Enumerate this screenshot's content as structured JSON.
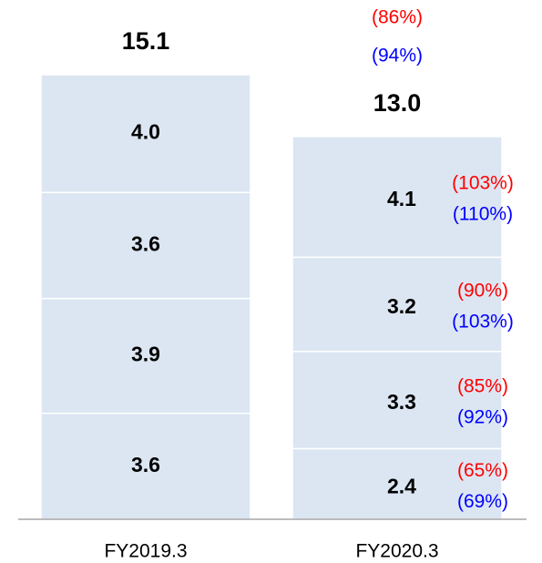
{
  "chart_data": {
    "type": "stacked_bar",
    "categories": [
      "FY2019.3",
      "FY2020.3"
    ],
    "color": "#dce6f2",
    "series": [
      {
        "values": [
          3.6,
          2.4
        ],
        "value_labels": [
          "3.6",
          "2.4"
        ]
      },
      {
        "values": [
          3.9,
          3.3
        ],
        "value_labels": [
          "3.9",
          "3.3"
        ]
      },
      {
        "values": [
          3.6,
          3.2
        ],
        "value_labels": [
          "3.6",
          "3.2"
        ]
      },
      {
        "values": [
          4.0,
          4.1
        ],
        "value_labels": [
          "4.0",
          "4.1"
        ]
      }
    ],
    "totals": {
      "values": [
        15.1,
        13.0
      ],
      "value_labels": [
        "15.1",
        "13.0"
      ]
    },
    "comparisons": [
      {
        "color": "#ff0000",
        "values": [
          65,
          85,
          90,
          103
        ],
        "value_labels": [
          "(65%)",
          "(85%)",
          "(90%)",
          "(103%)"
        ],
        "total": 86,
        "total_label": "(86%)"
      },
      {
        "color": "#0000ff",
        "values": [
          69,
          92,
          103,
          110
        ],
        "value_labels": [
          "(69%)",
          "(92%)",
          "(103%)",
          "(110%)"
        ],
        "total": 94,
        "total_label": "(94%)"
      }
    ]
  }
}
